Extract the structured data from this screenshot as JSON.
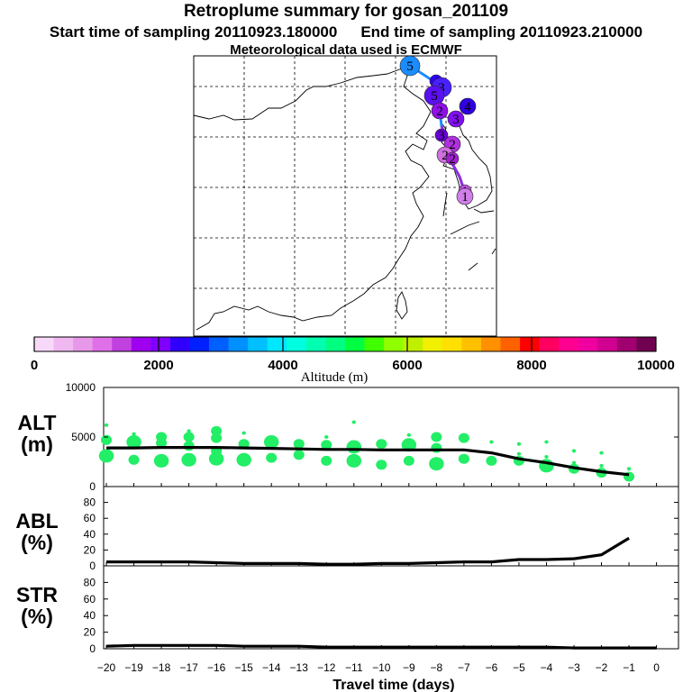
{
  "title": "Retroplume summary for gosan_201109",
  "subtitle_start": "Start time of sampling 20110923.180000",
  "subtitle_end": "End time of sampling 20110923.210000",
  "subtitle_met": "Meteorological data used is ECMWF",
  "colors": {
    "scale": [
      "#f8d8f8",
      "#f0b8f0",
      "#e898e8",
      "#e070e8",
      "#c040e0",
      "#a000f0",
      "#8000ff",
      "#3000ff",
      "#0020ff",
      "#0060ff",
      "#0090ff",
      "#00c0ff",
      "#00e8ff",
      "#00ffe0",
      "#00ffb0",
      "#00ff80",
      "#00ff40",
      "#40ff00",
      "#90ff00",
      "#c0f000",
      "#f0f000",
      "#ffe000",
      "#ffc000",
      "#ff9000",
      "#ff6000",
      "#ff0000",
      "#ff0060",
      "#ff0090",
      "#f000a0",
      "#d00090",
      "#a00070",
      "#700050"
    ],
    "green": "#22ee66",
    "line": "#000000"
  },
  "chart_data": [
    {
      "type": "map",
      "name": "trajectory-map",
      "markers": [
        {
          "label": "5",
          "color": "#1a8cff",
          "size": "large"
        },
        {
          "label": "4",
          "color": "#3000ff",
          "size": "small"
        },
        {
          "label": "3",
          "color": "#4a20ff",
          "size": "large"
        },
        {
          "label": "5",
          "color": "#5a10f0",
          "size": "large"
        },
        {
          "label": "4",
          "color": "#3000e0",
          "size": "medium"
        },
        {
          "label": "3",
          "color": "#8010ee",
          "size": "medium"
        },
        {
          "label": "2",
          "color": "#9010e8",
          "size": "medium"
        },
        {
          "label": "3",
          "color": "#6a00d8",
          "size": "small"
        },
        {
          "label": "2",
          "color": "#b030e0",
          "size": "medium"
        },
        {
          "label": "2",
          "color": "#d070e0",
          "size": "medium"
        },
        {
          "label": "2",
          "color": "#a020d0",
          "size": "small"
        },
        {
          "label": "1",
          "color": "#c050e0",
          "size": "small"
        },
        {
          "label": "1",
          "color": "#d080e8",
          "size": "medium"
        }
      ]
    },
    {
      "type": "colorbar",
      "name": "altitude-colorbar",
      "min": 0,
      "max": 10000,
      "ticks": [
        0,
        2000,
        4000,
        6000,
        8000,
        10000
      ],
      "tick_labels": [
        "0",
        "2000",
        "4000",
        "6000",
        "8000",
        "10000"
      ],
      "label": "Altitude (m)"
    },
    {
      "type": "line",
      "name": "alt-panel",
      "ylabel": "ALT\n(m)",
      "ylabel_lines": [
        "ALT",
        "(m)"
      ],
      "ylim": [
        0,
        10000
      ],
      "yticks": [
        0,
        5000,
        10000
      ],
      "ytick_labels": [
        "0",
        "5000",
        "10000"
      ],
      "x": [
        -20,
        -19,
        -18,
        -17,
        -16,
        -15,
        -14,
        -13,
        -12,
        -11,
        -10,
        -9,
        -8,
        -7,
        -6,
        -5,
        -4,
        -3,
        -2,
        -1
      ],
      "values": [
        3900,
        3900,
        3950,
        3950,
        3950,
        3900,
        3850,
        3800,
        3750,
        3750,
        3700,
        3700,
        3700,
        3700,
        3400,
        2800,
        2400,
        1900,
        1500,
        1200
      ],
      "scatter": [
        {
          "x": -20,
          "y": 3100,
          "s": "L"
        },
        {
          "x": -20,
          "y": 4700,
          "s": "M"
        },
        {
          "x": -20,
          "y": 6200,
          "s": "S"
        },
        {
          "x": -19,
          "y": 2700,
          "s": "M"
        },
        {
          "x": -19,
          "y": 4500,
          "s": "L"
        },
        {
          "x": -19,
          "y": 5300,
          "s": "S"
        },
        {
          "x": -18,
          "y": 2600,
          "s": "L"
        },
        {
          "x": -18,
          "y": 4400,
          "s": "M"
        },
        {
          "x": -18,
          "y": 5000,
          "s": "M"
        },
        {
          "x": -17,
          "y": 2700,
          "s": "L"
        },
        {
          "x": -17,
          "y": 4100,
          "s": "M"
        },
        {
          "x": -17,
          "y": 5000,
          "s": "M"
        },
        {
          "x": -17,
          "y": 5600,
          "s": "S"
        },
        {
          "x": -16,
          "y": 2800,
          "s": "L"
        },
        {
          "x": -16,
          "y": 3600,
          "s": "M"
        },
        {
          "x": -16,
          "y": 4900,
          "s": "M"
        },
        {
          "x": -16,
          "y": 5600,
          "s": "M"
        },
        {
          "x": -15,
          "y": 2700,
          "s": "L"
        },
        {
          "x": -15,
          "y": 4300,
          "s": "M"
        },
        {
          "x": -15,
          "y": 5400,
          "s": "S"
        },
        {
          "x": -14,
          "y": 2900,
          "s": "M"
        },
        {
          "x": -14,
          "y": 4500,
          "s": "L"
        },
        {
          "x": -13,
          "y": 3200,
          "s": "M"
        },
        {
          "x": -13,
          "y": 4300,
          "s": "M"
        },
        {
          "x": -12,
          "y": 2600,
          "s": "M"
        },
        {
          "x": -12,
          "y": 4200,
          "s": "M"
        },
        {
          "x": -12,
          "y": 5000,
          "s": "S"
        },
        {
          "x": -11,
          "y": 2600,
          "s": "L"
        },
        {
          "x": -11,
          "y": 4000,
          "s": "L"
        },
        {
          "x": -11,
          "y": 6500,
          "s": "S"
        },
        {
          "x": -10,
          "y": 2200,
          "s": "M"
        },
        {
          "x": -10,
          "y": 4300,
          "s": "M"
        },
        {
          "x": -9,
          "y": 2600,
          "s": "M"
        },
        {
          "x": -9,
          "y": 4200,
          "s": "L"
        },
        {
          "x": -9,
          "y": 5200,
          "s": "S"
        },
        {
          "x": -8,
          "y": 2300,
          "s": "L"
        },
        {
          "x": -8,
          "y": 3900,
          "s": "M"
        },
        {
          "x": -8,
          "y": 5000,
          "s": "M"
        },
        {
          "x": -7,
          "y": 2800,
          "s": "M"
        },
        {
          "x": -7,
          "y": 4900,
          "s": "M"
        },
        {
          "x": -6,
          "y": 2600,
          "s": "M"
        },
        {
          "x": -6,
          "y": 4500,
          "s": "S"
        },
        {
          "x": -5,
          "y": 2600,
          "s": "M"
        },
        {
          "x": -5,
          "y": 3300,
          "s": "S"
        },
        {
          "x": -5,
          "y": 4300,
          "s": "S"
        },
        {
          "x": -4,
          "y": 2100,
          "s": "L"
        },
        {
          "x": -4,
          "y": 3000,
          "s": "S"
        },
        {
          "x": -4,
          "y": 4500,
          "s": "S"
        },
        {
          "x": -3,
          "y": 1800,
          "s": "M"
        },
        {
          "x": -3,
          "y": 2400,
          "s": "S"
        },
        {
          "x": -3,
          "y": 3600,
          "s": "S"
        },
        {
          "x": -2,
          "y": 1400,
          "s": "M"
        },
        {
          "x": -2,
          "y": 2100,
          "s": "S"
        },
        {
          "x": -2,
          "y": 3400,
          "s": "S"
        },
        {
          "x": -1,
          "y": 1000,
          "s": "M"
        },
        {
          "x": -1,
          "y": 1800,
          "s": "S"
        }
      ]
    },
    {
      "type": "line",
      "name": "abl-panel",
      "ylabel_lines": [
        "ABL",
        "(%)"
      ],
      "ylim": [
        0,
        100
      ],
      "yticks": [
        0,
        20,
        40,
        60,
        80
      ],
      "ytick_labels": [
        "0",
        "20",
        "40",
        "60",
        "80"
      ],
      "x": [
        -20,
        -19,
        -18,
        -17,
        -16,
        -15,
        -14,
        -13,
        -12,
        -11,
        -10,
        -9,
        -8,
        -7,
        -6,
        -5,
        -4,
        -3,
        -2,
        -1
      ],
      "values": [
        5,
        5,
        5,
        5,
        4,
        3,
        3,
        3,
        2,
        2,
        3,
        3,
        4,
        5,
        5,
        8,
        8,
        9,
        14,
        35
      ]
    },
    {
      "type": "line",
      "name": "str-panel",
      "ylabel_lines": [
        "STR",
        "(%)"
      ],
      "ylim": [
        0,
        100
      ],
      "yticks": [
        0,
        20,
        40,
        60,
        80
      ],
      "ytick_labels": [
        "0",
        "20",
        "40",
        "60",
        "80"
      ],
      "x": [
        -20,
        -19,
        -18,
        -17,
        -16,
        -15,
        -14,
        -13,
        -12,
        -11,
        -10,
        -9,
        -8,
        -7,
        -6,
        -5,
        -4,
        -3,
        -2,
        -1,
        0
      ],
      "values": [
        3,
        4,
        4,
        4,
        4,
        3,
        3,
        3,
        2,
        2,
        2,
        2,
        2,
        2,
        2,
        2,
        2,
        1,
        1,
        1,
        1
      ]
    },
    {
      "type": "axis",
      "name": "travel-time-axis",
      "xlabel": "Travel time (days)",
      "ticks": [
        -20,
        -19,
        -18,
        -17,
        -16,
        -15,
        -14,
        -13,
        -12,
        -11,
        -10,
        -9,
        -8,
        -7,
        -6,
        -5,
        -4,
        -3,
        -2,
        -1,
        0
      ],
      "tick_labels": [
        "−20",
        "−19",
        "−18",
        "−17",
        "−16",
        "−15",
        "−14",
        "−13",
        "−12",
        "−11",
        "−10",
        "−9",
        "−8",
        "−7",
        "−6",
        "−5",
        "−4",
        "−3",
        "−2",
        "−1",
        "0"
      ]
    }
  ]
}
